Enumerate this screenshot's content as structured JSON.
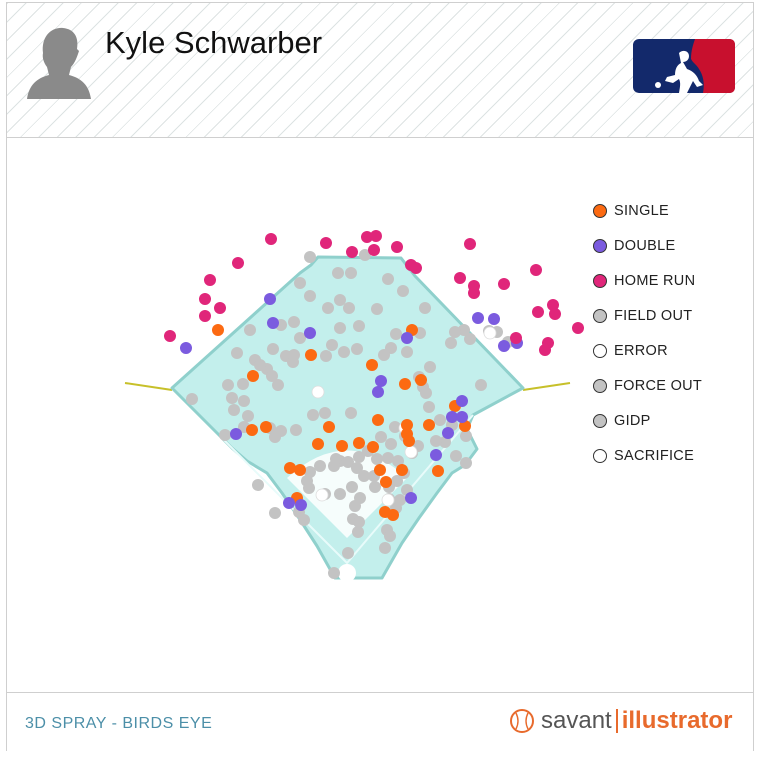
{
  "player": {
    "name": "Kyle Schwarber"
  },
  "footer": {
    "label": "3D SPRAY - BIRDS EYE",
    "brand_savant": "savant",
    "brand_illustrator": "illustrator"
  },
  "icons": {
    "player": "player-silhouette-icon",
    "league": "mlb-logo-icon",
    "brand": "baseball-icon"
  },
  "colors": {
    "field": "#c3efec",
    "field_edge": "#8fd0cc",
    "foul_line": "#c7c02a"
  },
  "chart_data": {
    "type": "scatter",
    "title": "",
    "legend_position": "right",
    "legend": [
      {
        "name": "SINGLE",
        "color": "#fc6a12"
      },
      {
        "name": "DOUBLE",
        "color": "#7b5bdf"
      },
      {
        "name": "HOME RUN",
        "color": "#e0267a"
      },
      {
        "name": "FIELD OUT",
        "color": "#c3c3c3"
      },
      {
        "name": "ERROR",
        "color": "#ffffff"
      },
      {
        "name": "FORCE OUT",
        "color": "#c3c3c3"
      },
      {
        "name": "GIDP",
        "color": "#c3c3c3"
      },
      {
        "name": "SACRIFICE",
        "color": "#ffffff"
      }
    ],
    "points": {
      "HOME RUN": [
        [
          271,
          239
        ],
        [
          326,
          243
        ],
        [
          352,
          252
        ],
        [
          367,
          237
        ],
        [
          376,
          236
        ],
        [
          374,
          250
        ],
        [
          397,
          247
        ],
        [
          411,
          265
        ],
        [
          416,
          268
        ],
        [
          470,
          244
        ],
        [
          536,
          270
        ],
        [
          460,
          278
        ],
        [
          474,
          286
        ],
        [
          474,
          293
        ],
        [
          504,
          284
        ],
        [
          538,
          312
        ],
        [
          553,
          305
        ],
        [
          555,
          314
        ],
        [
          578,
          328
        ],
        [
          516,
          338
        ],
        [
          548,
          343
        ],
        [
          545,
          350
        ],
        [
          238,
          263
        ],
        [
          210,
          280
        ],
        [
          205,
          299
        ],
        [
          220,
          308
        ],
        [
          205,
          316
        ],
        [
          170,
          336
        ]
      ],
      "DOUBLE": [
        [
          270,
          299
        ],
        [
          273,
          323
        ],
        [
          310,
          333
        ],
        [
          186,
          348
        ],
        [
          236,
          434
        ],
        [
          494,
          319
        ],
        [
          478,
          318
        ],
        [
          504,
          346
        ],
        [
          517,
          343
        ],
        [
          407,
          338
        ],
        [
          462,
          401
        ],
        [
          452,
          417
        ],
        [
          462,
          417
        ],
        [
          448,
          433
        ],
        [
          436,
          455
        ],
        [
          381,
          381
        ],
        [
          378,
          392
        ],
        [
          289,
          503
        ],
        [
          301,
          505
        ],
        [
          411,
          498
        ]
      ],
      "SINGLE": [
        [
          218,
          330
        ],
        [
          253,
          376
        ],
        [
          311,
          355
        ],
        [
          372,
          365
        ],
        [
          412,
          330
        ],
        [
          405,
          384
        ],
        [
          421,
          380
        ],
        [
          378,
          420
        ],
        [
          359,
          443
        ],
        [
          373,
          447
        ],
        [
          407,
          425
        ],
        [
          407,
          434
        ],
        [
          409,
          441
        ],
        [
          429,
          425
        ],
        [
          455,
          406
        ],
        [
          465,
          426
        ],
        [
          266,
          427
        ],
        [
          252,
          430
        ],
        [
          290,
          468
        ],
        [
          329,
          427
        ],
        [
          342,
          446
        ],
        [
          318,
          444
        ],
        [
          300,
          470
        ],
        [
          297,
          498
        ],
        [
          385,
          512
        ],
        [
          393,
          515
        ],
        [
          380,
          470
        ],
        [
          386,
          482
        ],
        [
          438,
          471
        ],
        [
          402,
          470
        ]
      ],
      "FIELD OUT": [
        [
          310,
          257
        ],
        [
          365,
          255
        ],
        [
          338,
          273
        ],
        [
          351,
          273
        ],
        [
          300,
          283
        ],
        [
          388,
          279
        ],
        [
          403,
          291
        ],
        [
          310,
          296
        ],
        [
          340,
          300
        ],
        [
          328,
          308
        ],
        [
          349,
          308
        ],
        [
          294,
          322
        ],
        [
          281,
          325
        ],
        [
          250,
          330
        ],
        [
          359,
          326
        ],
        [
          377,
          309
        ],
        [
          425,
          308
        ],
        [
          340,
          328
        ],
        [
          300,
          338
        ],
        [
          332,
          345
        ],
        [
          357,
          349
        ],
        [
          344,
          352
        ],
        [
          420,
          333
        ],
        [
          396,
          334
        ],
        [
          391,
          348
        ],
        [
          384,
          355
        ],
        [
          326,
          356
        ],
        [
          286,
          356
        ],
        [
          273,
          349
        ],
        [
          237,
          353
        ],
        [
          255,
          360
        ],
        [
          267,
          369
        ],
        [
          294,
          355
        ],
        [
          430,
          367
        ],
        [
          419,
          377
        ],
        [
          407,
          352
        ],
        [
          451,
          343
        ],
        [
          470,
          339
        ],
        [
          464,
          330
        ],
        [
          455,
          332
        ],
        [
          489,
          331
        ],
        [
          497,
          332
        ],
        [
          508,
          342
        ],
        [
          481,
          385
        ],
        [
          243,
          384
        ],
        [
          228,
          385
        ],
        [
          232,
          398
        ],
        [
          234,
          410
        ],
        [
          192,
          399
        ],
        [
          248,
          416
        ],
        [
          244,
          427
        ],
        [
          270,
          428
        ],
        [
          275,
          437
        ],
        [
          281,
          431
        ],
        [
          296,
          430
        ],
        [
          313,
          415
        ],
        [
          325,
          413
        ],
        [
          351,
          413
        ],
        [
          293,
          362
        ],
        [
          260,
          365
        ],
        [
          272,
          376
        ],
        [
          244,
          401
        ],
        [
          278,
          385
        ],
        [
          423,
          387
        ],
        [
          429,
          407
        ],
        [
          440,
          420
        ],
        [
          426,
          393
        ],
        [
          452,
          425
        ],
        [
          445,
          442
        ],
        [
          466,
          436
        ],
        [
          436,
          441
        ],
        [
          466,
          463
        ],
        [
          456,
          456
        ],
        [
          381,
          437
        ],
        [
          391,
          444
        ],
        [
          405,
          436
        ],
        [
          395,
          427
        ],
        [
          418,
          446
        ],
        [
          320,
          466
        ],
        [
          310,
          472
        ],
        [
          307,
          481
        ],
        [
          340,
          461
        ],
        [
          348,
          462
        ],
        [
          359,
          457
        ],
        [
          368,
          451
        ],
        [
          377,
          459
        ],
        [
          388,
          458
        ],
        [
          398,
          461
        ],
        [
          412,
          453
        ],
        [
          404,
          473
        ],
        [
          397,
          481
        ],
        [
          407,
          490
        ],
        [
          389,
          487
        ],
        [
          375,
          487
        ],
        [
          352,
          487
        ],
        [
          340,
          494
        ],
        [
          325,
          494
        ],
        [
          309,
          488
        ],
        [
          299,
          512
        ],
        [
          304,
          520
        ],
        [
          336,
          459
        ],
        [
          334,
          466
        ],
        [
          357,
          468
        ],
        [
          364,
          476
        ],
        [
          374,
          476
        ],
        [
          400,
          500
        ],
        [
          396,
          508
        ],
        [
          389,
          499
        ],
        [
          360,
          498
        ],
        [
          355,
          506
        ],
        [
          353,
          519
        ],
        [
          359,
          522
        ],
        [
          387,
          530
        ],
        [
          390,
          536
        ],
        [
          358,
          532
        ],
        [
          385,
          548
        ],
        [
          348,
          553
        ],
        [
          334,
          573
        ],
        [
          258,
          485
        ],
        [
          275,
          513
        ],
        [
          225,
          435
        ]
      ],
      "ERROR": [
        [
          490,
          333
        ],
        [
          318,
          392
        ],
        [
          405,
          428
        ],
        [
          411,
          452
        ],
        [
          322,
          495
        ],
        [
          388,
          500
        ]
      ],
      "FORCE OUT": [],
      "GIDP": [],
      "SACRIFICE": []
    }
  }
}
